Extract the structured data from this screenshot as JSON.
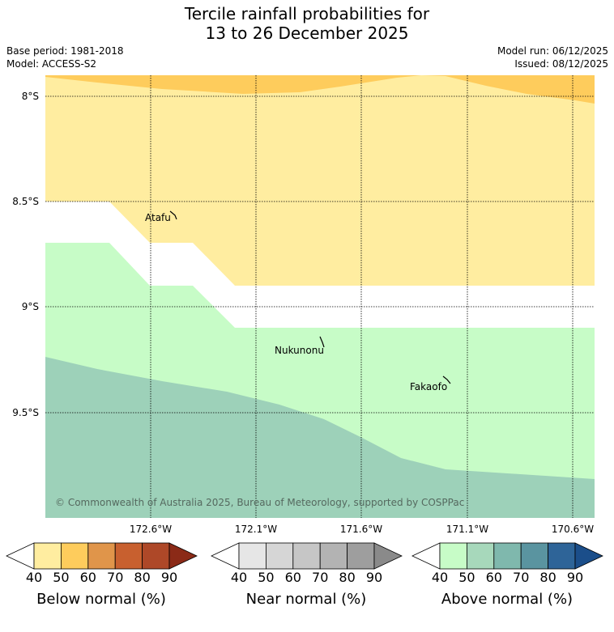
{
  "title": {
    "line1": "Tercile rainfall probabilities for",
    "line2": "13 to 26 December 2025"
  },
  "meta": {
    "base_period": "Base period: 1981-2018",
    "model": "Model: ACCESS-S2",
    "model_run": "Model run: 06/12/2025",
    "issued": "Issued: 08/12/2025"
  },
  "map": {
    "lat_labels": [
      "8°S",
      "8.5°S",
      "9°S",
      "9.5°S"
    ],
    "lon_labels": [
      "172.6°W",
      "172.1°W",
      "171.6°W",
      "171.1°W",
      "170.6°W"
    ],
    "places": [
      {
        "name": "Atafu"
      },
      {
        "name": "Nukunonu"
      },
      {
        "name": "Fakaofo"
      }
    ],
    "copyright": "© Commonwealth of Australia 2025, Bureau of Meteorology, supported by COSPPac",
    "region_colors": {
      "below_40_50": "#ffeda0",
      "below_50_60": "#fecc5c",
      "above_40_50": "#c7fcc7",
      "above_50_60": "#9dd1b9",
      "ocean_gap": "#ffffff"
    }
  },
  "colorbars": [
    {
      "label": "Below normal (%)",
      "ticks": [
        "40",
        "50",
        "60",
        "70",
        "80",
        "90"
      ],
      "colors": [
        "#ffffff",
        "#ffeda0",
        "#fecc5c",
        "#e0954a",
        "#c8602f",
        "#ae4828",
        "#8b2a17"
      ]
    },
    {
      "label": "Near normal (%)",
      "ticks": [
        "40",
        "50",
        "60",
        "70",
        "80",
        "90"
      ],
      "colors": [
        "#ffffff",
        "#e6e6e6",
        "#d6d6d6",
        "#c6c6c6",
        "#b3b3b3",
        "#9e9e9e",
        "#8a8a8a"
      ]
    },
    {
      "label": "Above normal (%)",
      "ticks": [
        "40",
        "50",
        "60",
        "70",
        "80",
        "90"
      ],
      "colors": [
        "#ffffff",
        "#c7fcc7",
        "#a7d8bb",
        "#7fb8ad",
        "#5a94a0",
        "#2e6498",
        "#1b4e8a"
      ]
    }
  ]
}
